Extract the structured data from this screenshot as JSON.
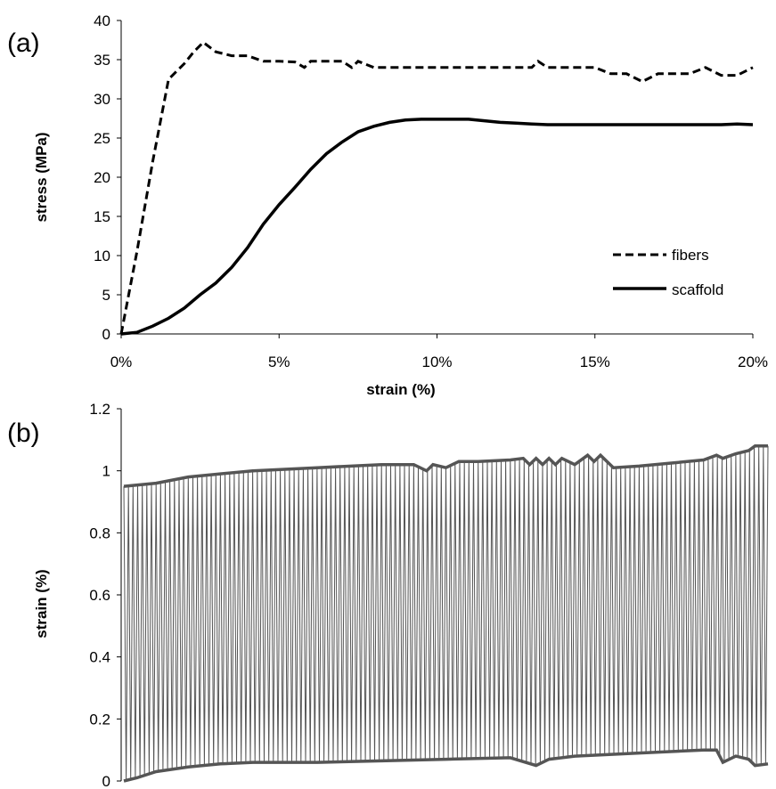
{
  "chart_data": [
    {
      "type": "line",
      "panel_label": "(a)",
      "xlabel": "strain (%)",
      "ylabel": "stress (MPa)",
      "xlim": [
        0,
        20
      ],
      "ylim": [
        0,
        40
      ],
      "x_tick_values": [
        0,
        5,
        10,
        15,
        20
      ],
      "x_ticks": [
        "0%",
        "5%",
        "10%",
        "15%",
        "20%"
      ],
      "y_tick_values": [
        0,
        5,
        10,
        15,
        20,
        25,
        30,
        35,
        40
      ],
      "y_ticks": [
        "0",
        "5",
        "10",
        "15",
        "20",
        "25",
        "30",
        "35",
        "40"
      ],
      "legend_position": "right",
      "grid": false,
      "series": [
        {
          "name": "fibers",
          "style": "dashed",
          "color": "#000000",
          "x": [
            0,
            0.5,
            1,
            1.5,
            2,
            2.3,
            2.6,
            3,
            3.5,
            4,
            4.5,
            5,
            5.5,
            5.8,
            6,
            7,
            7.3,
            7.5,
            8,
            9,
            10,
            11,
            12,
            13,
            13.2,
            13.5,
            14,
            15,
            15.5,
            16,
            16.5,
            17,
            18,
            18.5,
            19,
            19.5,
            20
          ],
          "y": [
            0,
            10.5,
            22,
            32.5,
            34.5,
            36,
            37.2,
            36,
            35.5,
            35.5,
            34.8,
            34.8,
            34.7,
            34,
            34.8,
            34.8,
            34,
            34.8,
            34,
            34,
            34,
            34,
            34,
            34,
            34.8,
            34,
            34,
            34,
            33.2,
            33.2,
            32.2,
            33.2,
            33.2,
            34,
            33,
            33,
            34
          ]
        },
        {
          "name": "scaffold",
          "style": "solid",
          "color": "#000000",
          "x": [
            0,
            0.5,
            1,
            1.5,
            2,
            2.5,
            3,
            3.5,
            4,
            4.5,
            5,
            5.5,
            6,
            6.5,
            7,
            7.5,
            8,
            8.5,
            9,
            9.5,
            10,
            10.5,
            11,
            11.5,
            12,
            12.5,
            13,
            13.5,
            14,
            15,
            16,
            17,
            18,
            19,
            19.5,
            20
          ],
          "y": [
            0,
            0.2,
            1,
            2,
            3.3,
            5,
            6.5,
            8.5,
            11,
            14,
            16.5,
            18.7,
            21,
            23,
            24.5,
            25.8,
            26.5,
            27,
            27.3,
            27.4,
            27.4,
            27.4,
            27.4,
            27.2,
            27,
            26.9,
            26.8,
            26.7,
            26.7,
            26.7,
            26.7,
            26.7,
            26.7,
            26.7,
            26.8,
            26.7
          ]
        }
      ]
    },
    {
      "type": "line",
      "panel_label": "(b)",
      "xlabel": "",
      "ylabel": "strain (%)",
      "ylim": [
        0,
        1.2
      ],
      "y_tick_values": [
        0,
        0.2,
        0.4,
        0.6,
        0.8,
        1,
        1.2
      ],
      "y_ticks": [
        "0",
        "0.2",
        "0.4",
        "0.6",
        "0.8",
        "1",
        "1.2"
      ],
      "x_ticks": [],
      "grid": false,
      "cycles": 140,
      "trace_color": "#555555",
      "envelope_color": "#555555",
      "series": [
        {
          "name": "",
          "role": "upper envelope",
          "x": [
            0,
            0.05,
            0.1,
            0.2,
            0.3,
            0.4,
            0.45,
            0.47,
            0.48,
            0.5,
            0.52,
            0.55,
            0.6,
            0.62,
            0.63,
            0.64,
            0.65,
            0.66,
            0.67,
            0.68,
            0.7,
            0.72,
            0.73,
            0.74,
            0.76,
            0.8,
            0.85,
            0.9,
            0.92,
            0.93,
            0.95,
            0.97,
            0.98,
            1
          ],
          "y": [
            0.95,
            0.96,
            0.98,
            1.0,
            1.01,
            1.02,
            1.02,
            1.0,
            1.02,
            1.01,
            1.03,
            1.03,
            1.035,
            1.04,
            1.02,
            1.04,
            1.02,
            1.04,
            1.02,
            1.04,
            1.02,
            1.05,
            1.03,
            1.05,
            1.01,
            1.015,
            1.025,
            1.035,
            1.05,
            1.04,
            1.055,
            1.065,
            1.08,
            1.08
          ]
        },
        {
          "name": "",
          "role": "lower envelope",
          "x": [
            0,
            0.02,
            0.05,
            0.1,
            0.15,
            0.2,
            0.3,
            0.4,
            0.5,
            0.6,
            0.64,
            0.66,
            0.7,
            0.8,
            0.9,
            0.92,
            0.93,
            0.95,
            0.97,
            0.98,
            1
          ],
          "y": [
            0.0,
            0.01,
            0.03,
            0.045,
            0.055,
            0.06,
            0.06,
            0.065,
            0.07,
            0.075,
            0.05,
            0.07,
            0.08,
            0.09,
            0.1,
            0.1,
            0.06,
            0.08,
            0.07,
            0.05,
            0.055
          ]
        }
      ]
    }
  ]
}
